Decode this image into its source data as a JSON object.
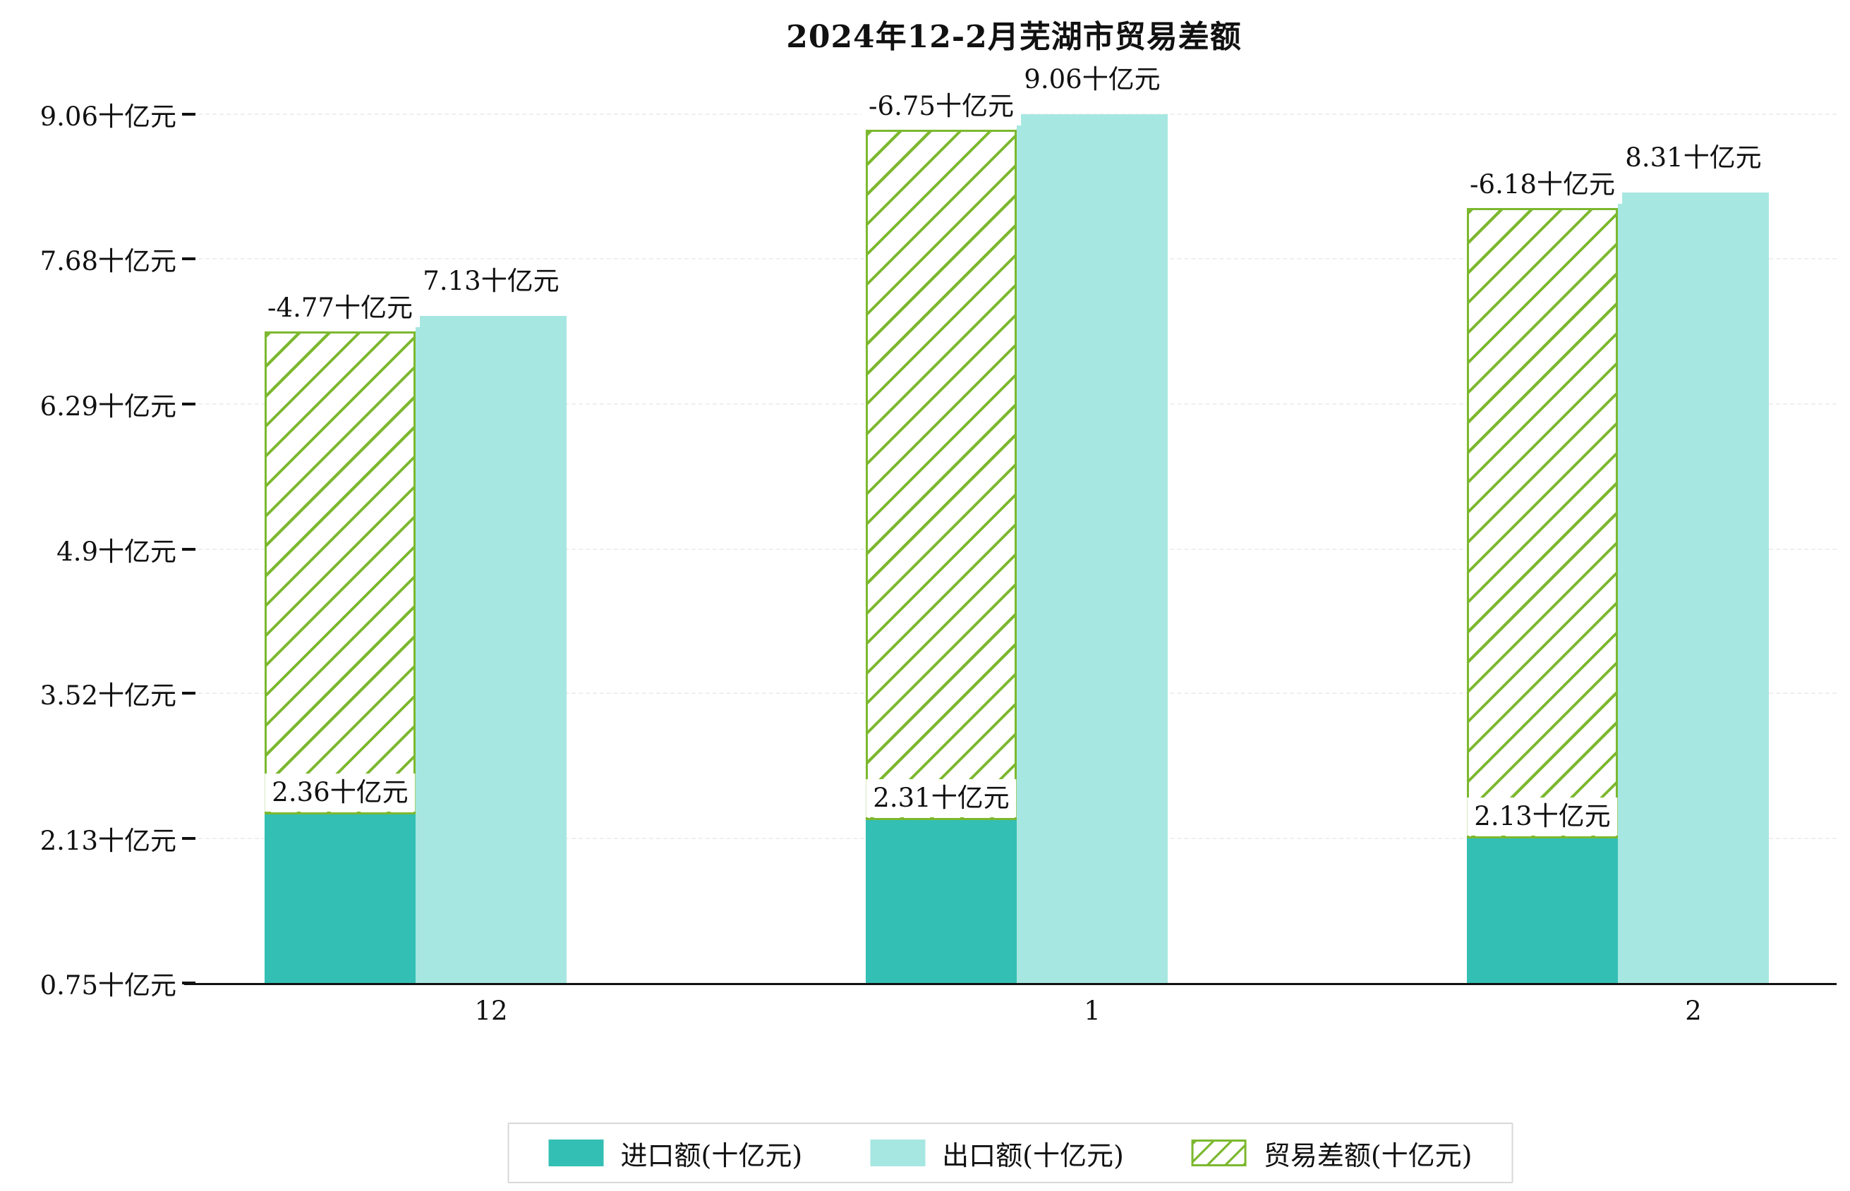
{
  "title": "2024年12-2月芜湖市贸易差额",
  "chart_data": {
    "type": "bar",
    "title": "2024年12-2月芜湖市贸易差额",
    "unit": "十亿元",
    "categories": [
      "12",
      "1",
      "2"
    ],
    "series": [
      {
        "key": "import",
        "name": "进口额(十亿元)",
        "style": "solid",
        "color": "#33bfb4",
        "values": [
          2.36,
          2.31,
          2.13
        ]
      },
      {
        "key": "export",
        "name": "出口额(十亿元)",
        "style": "solid",
        "color": "#a7e7e1",
        "values": [
          7.13,
          9.06,
          8.31
        ]
      },
      {
        "key": "balance",
        "name": "贸易差额(十亿元)",
        "style": "hatched",
        "color": "#7cb82f",
        "values": [
          -4.77,
          -6.75,
          -6.18
        ]
      }
    ],
    "bar_labels": [
      {
        "import": "2.36十亿元",
        "export": "7.13十亿元",
        "balance": "-4.77十亿元"
      },
      {
        "import": "2.31十亿元",
        "export": "9.06十亿元",
        "balance": "-6.75十亿元"
      },
      {
        "import": "2.13十亿元",
        "export": "8.31十亿元",
        "balance": "-6.18十亿元"
      }
    ],
    "y_ticks": [
      {
        "value": 0.75,
        "label": "0.75十亿元"
      },
      {
        "value": 2.13,
        "label": "2.13十亿元"
      },
      {
        "value": 3.52,
        "label": "3.52十亿元"
      },
      {
        "value": 4.9,
        "label": "4.9十亿元"
      },
      {
        "value": 6.29,
        "label": "6.29十亿元"
      },
      {
        "value": 7.68,
        "label": "7.68十亿元"
      },
      {
        "value": 9.06,
        "label": "9.06十亿元"
      }
    ],
    "ylim": [
      0.75,
      9.06
    ],
    "grid": "horizontal-dashed",
    "legend_position": "bottom-center"
  }
}
